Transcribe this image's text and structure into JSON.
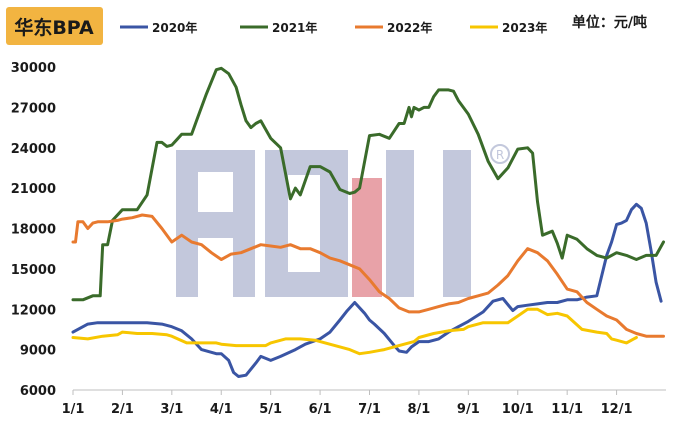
{
  "chart_data": {
    "type": "line",
    "title": "华东BPA",
    "unit_label": "单位：元/吨",
    "watermark": "ACMI",
    "x_ticks": [
      "1/1",
      "2/1",
      "3/1",
      "4/1",
      "5/1",
      "6/1",
      "7/1",
      "8/1",
      "9/1",
      "10/1",
      "11/1",
      "12/1"
    ],
    "xlim": [
      0,
      12
    ],
    "ylim": [
      6000,
      30000
    ],
    "y_ticks": [
      "6000",
      "9000",
      "12000",
      "15000",
      "18000",
      "21000",
      "24000",
      "27000",
      "30000"
    ],
    "y_tick_values": [
      6000,
      9000,
      12000,
      15000,
      18000,
      21000,
      24000,
      27000,
      30000
    ],
    "legend_position": "top",
    "series": [
      {
        "name": "2020年",
        "color": "#3a55a4",
        "x": [
          0,
          0.15,
          0.3,
          0.5,
          0.8,
          1.0,
          1.3,
          1.5,
          1.8,
          2.0,
          2.2,
          2.4,
          2.6,
          2.9,
          3.0,
          3.15,
          3.25,
          3.35,
          3.5,
          3.7,
          3.8,
          4.0,
          4.2,
          4.5,
          4.7,
          5.0,
          5.2,
          5.4,
          5.55,
          5.7,
          5.9,
          6.0,
          6.1,
          6.3,
          6.5,
          6.6,
          6.75,
          6.85,
          7.0,
          7.2,
          7.4,
          7.6,
          7.8,
          8.0,
          8.3,
          8.5,
          8.7,
          8.9,
          9.0,
          9.2,
          9.4,
          9.6,
          9.8,
          10.0,
          10.2,
          10.4,
          10.6,
          10.8,
          10.9,
          11.0,
          11.1,
          11.2,
          11.3,
          11.4,
          11.5,
          11.6,
          11.7,
          11.8,
          11.9
        ],
        "y": [
          10300,
          10600,
          10900,
          11000,
          11000,
          11000,
          11000,
          11000,
          10900,
          10700,
          10400,
          9800,
          9000,
          8700,
          8700,
          8200,
          7300,
          7000,
          7100,
          8000,
          8500,
          8200,
          8500,
          9000,
          9400,
          9800,
          10300,
          11200,
          11900,
          12500,
          11700,
          11200,
          10900,
          10200,
          9300,
          8900,
          8800,
          9200,
          9600,
          9600,
          9800,
          10300,
          10700,
          11100,
          11800,
          12600,
          12800,
          11900,
          12200,
          12300,
          12400,
          12500,
          12500,
          12700,
          12700,
          12900,
          13000,
          16000,
          17000,
          18300,
          18400,
          18600,
          19400,
          19800,
          19500,
          18400,
          16300,
          14000,
          12600
        ]
      },
      {
        "name": "2021年",
        "color": "#3a6b2a",
        "x": [
          0,
          0.2,
          0.4,
          0.55,
          0.6,
          0.7,
          0.8,
          1.0,
          1.1,
          1.3,
          1.5,
          1.7,
          1.8,
          1.9,
          2.0,
          2.1,
          2.2,
          2.4,
          2.5,
          2.7,
          2.9,
          3.0,
          3.15,
          3.3,
          3.4,
          3.5,
          3.6,
          3.7,
          3.8,
          4.0,
          4.2,
          4.4,
          4.5,
          4.6,
          4.8,
          5.0,
          5.2,
          5.4,
          5.6,
          5.7,
          5.8,
          6.0,
          6.2,
          6.4,
          6.6,
          6.7,
          6.8,
          6.85,
          6.9,
          7.0,
          7.1,
          7.2,
          7.3,
          7.4,
          7.6,
          7.7,
          7.8,
          8.0,
          8.2,
          8.4,
          8.6,
          8.8,
          9.0,
          9.2,
          9.3,
          9.4,
          9.5,
          9.7,
          9.8,
          9.9,
          10.0,
          10.2,
          10.4,
          10.6,
          10.8,
          10.9,
          11.0,
          11.2,
          11.4,
          11.6,
          11.8,
          11.95
        ],
        "y": [
          12700,
          12700,
          13000,
          13000,
          16800,
          16800,
          18600,
          19400,
          19400,
          19400,
          20500,
          24400,
          24400,
          24100,
          24200,
          24600,
          25000,
          25000,
          26000,
          28000,
          29800,
          29900,
          29500,
          28500,
          27200,
          26000,
          25500,
          25800,
          26000,
          24700,
          24000,
          20200,
          21000,
          20500,
          22600,
          22600,
          22200,
          20900,
          20600,
          20700,
          21000,
          24900,
          25000,
          24700,
          25800,
          25800,
          27000,
          26300,
          27000,
          26800,
          27000,
          27000,
          27800,
          28300,
          28300,
          28200,
          27500,
          26500,
          25000,
          23000,
          21700,
          22500,
          23900,
          24000,
          23600,
          20000,
          17500,
          17800,
          16900,
          15800,
          17500,
          17200,
          16500,
          16000,
          15800,
          16000,
          16200,
          16000,
          15700,
          16000,
          16000,
          17000
        ]
      },
      {
        "name": "2022年",
        "color": "#e87a2f",
        "x": [
          0,
          0.05,
          0.1,
          0.2,
          0.3,
          0.4,
          0.5,
          0.7,
          0.9,
          1.0,
          1.2,
          1.4,
          1.6,
          1.8,
          2.0,
          2.2,
          2.4,
          2.6,
          2.8,
          3.0,
          3.2,
          3.4,
          3.6,
          3.8,
          4.0,
          4.2,
          4.4,
          4.6,
          4.8,
          5.0,
          5.2,
          5.4,
          5.6,
          5.8,
          6.0,
          6.2,
          6.4,
          6.6,
          6.8,
          7.0,
          7.2,
          7.4,
          7.6,
          7.8,
          8.0,
          8.2,
          8.4,
          8.6,
          8.8,
          9.0,
          9.2,
          9.4,
          9.6,
          9.8,
          10.0,
          10.2,
          10.4,
          10.6,
          10.8,
          11.0,
          11.2,
          11.4,
          11.6,
          11.8,
          11.95
        ],
        "y": [
          17000,
          17000,
          18500,
          18500,
          18000,
          18400,
          18500,
          18500,
          18600,
          18700,
          18800,
          19000,
          18900,
          18000,
          17000,
          17500,
          17000,
          16800,
          16200,
          15700,
          16100,
          16200,
          16500,
          16800,
          16700,
          16600,
          16800,
          16500,
          16500,
          16200,
          15800,
          15600,
          15300,
          15000,
          14200,
          13300,
          12800,
          12100,
          11800,
          11800,
          12000,
          12200,
          12400,
          12500,
          12800,
          13000,
          13200,
          13800,
          14500,
          15600,
          16500,
          16200,
          15600,
          14600,
          13500,
          13300,
          12500,
          12000,
          11500,
          11200,
          10500,
          10200,
          10000,
          10000,
          10000
        ]
      },
      {
        "name": "2023年",
        "color": "#f7c600",
        "x": [
          0,
          0.3,
          0.6,
          0.9,
          1.0,
          1.3,
          1.6,
          1.9,
          2.0,
          2.3,
          2.6,
          2.9,
          3.0,
          3.3,
          3.6,
          3.9,
          4.0,
          4.3,
          4.6,
          4.9,
          5.0,
          5.3,
          5.6,
          5.8,
          6.0,
          6.3,
          6.6,
          6.9,
          7.0,
          7.3,
          7.6,
          7.9,
          8.0,
          8.3,
          8.6,
          8.8,
          9.0,
          9.2,
          9.4,
          9.6,
          9.8,
          10.0,
          10.3,
          10.6,
          10.8,
          10.9,
          11.0,
          11.2,
          11.4
        ],
        "y": [
          9900,
          9800,
          10000,
          10100,
          10300,
          10200,
          10200,
          10100,
          10000,
          9500,
          9500,
          9500,
          9400,
          9300,
          9300,
          9300,
          9500,
          9800,
          9800,
          9700,
          9600,
          9300,
          9000,
          8700,
          8800,
          9000,
          9300,
          9600,
          9900,
          10200,
          10400,
          10500,
          10700,
          11000,
          11000,
          11000,
          11500,
          12000,
          12000,
          11600,
          11700,
          11500,
          10500,
          10300,
          10200,
          9800,
          9700,
          9500,
          9900
        ]
      }
    ]
  }
}
